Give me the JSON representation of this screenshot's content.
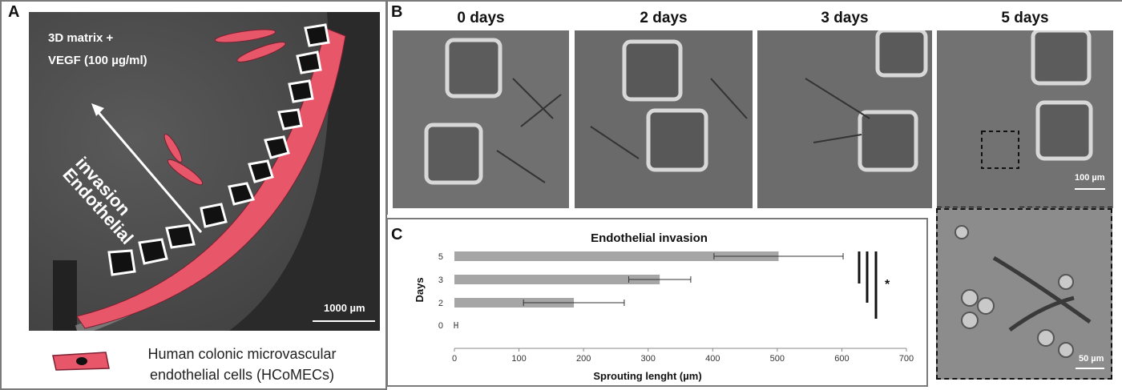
{
  "panel_a": {
    "label": "A",
    "matrix_line1": "3D matrix +",
    "matrix_line2": "VEGF (100 µg/ml)",
    "invasion_line1": "Endothelial",
    "invasion_line2": "invasion",
    "scalebar": "1000 µm",
    "legend_line1": "Human colonic microvascular",
    "legend_line2": "endothelial cells (HCoMECs)",
    "cell_color": "#e8566a"
  },
  "panel_b": {
    "label": "B",
    "days": [
      "0 days",
      "2 days",
      "3 days",
      "5 days"
    ],
    "scalebar_main": "100 µm",
    "scalebar_zoom": "50 µm"
  },
  "panel_c": {
    "label": "C",
    "significance": "*"
  },
  "chart_data": {
    "type": "bar",
    "orientation": "horizontal",
    "title": "Endothelial invasion",
    "xlabel": "Sprouting lenght (µm)",
    "ylabel": "Days",
    "categories": [
      "0",
      "2",
      "3",
      "5"
    ],
    "values": [
      0,
      185,
      318,
      502
    ],
    "errors": [
      5,
      78,
      48,
      100
    ],
    "xlim": [
      0,
      700
    ],
    "xticks": [
      0,
      100,
      200,
      300,
      400,
      500,
      600,
      700
    ],
    "bar_color": "#a6a6a6",
    "grid": false
  }
}
